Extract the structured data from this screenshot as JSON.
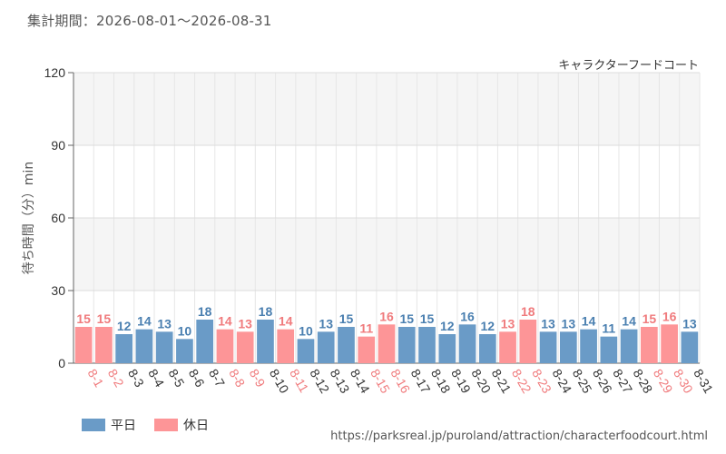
{
  "header": {
    "period_label": "集計期間：2026-08-01～2026-08-31",
    "attraction_name": "キャラクターフードコート"
  },
  "footer": {
    "source_url": "https://parksreal.jp/puroland/attraction/characterfoodcourt.html"
  },
  "colors": {
    "weekday": "#6a9bc7",
    "holiday": "#fd9597",
    "weekday_label": "#4a7fb0",
    "holiday_label": "#f07b7d"
  },
  "chart_data": {
    "type": "bar",
    "title": "",
    "xlabel": "",
    "ylabel": "待ち時間（分）min",
    "ylim": [
      0,
      120
    ],
    "yticks": [
      0,
      30,
      60,
      90,
      120
    ],
    "grid": true,
    "legend_position": "bottom-left",
    "categories": [
      "8-1",
      "8-2",
      "8-3",
      "8-4",
      "8-5",
      "8-6",
      "8-7",
      "8-8",
      "8-9",
      "8-10",
      "8-11",
      "8-12",
      "8-13",
      "8-14",
      "8-15",
      "8-16",
      "8-17",
      "8-18",
      "8-19",
      "8-20",
      "8-21",
      "8-22",
      "8-23",
      "8-24",
      "8-25",
      "8-26",
      "8-27",
      "8-28",
      "8-29",
      "8-30",
      "8-31"
    ],
    "values": [
      15,
      15,
      12,
      14,
      13,
      10,
      18,
      14,
      13,
      18,
      14,
      10,
      13,
      15,
      11,
      16,
      15,
      15,
      12,
      16,
      12,
      13,
      18,
      13,
      13,
      14,
      11,
      14,
      15,
      16,
      13
    ],
    "day_type": [
      "holiday",
      "holiday",
      "weekday",
      "weekday",
      "weekday",
      "weekday",
      "weekday",
      "holiday",
      "holiday",
      "weekday",
      "holiday",
      "weekday",
      "weekday",
      "weekday",
      "holiday",
      "holiday",
      "weekday",
      "weekday",
      "weekday",
      "weekday",
      "weekday",
      "holiday",
      "holiday",
      "weekday",
      "weekday",
      "weekday",
      "weekday",
      "weekday",
      "holiday",
      "holiday",
      "weekday"
    ],
    "series": [
      {
        "name": "平日",
        "key": "weekday"
      },
      {
        "name": "休日",
        "key": "holiday"
      }
    ]
  }
}
